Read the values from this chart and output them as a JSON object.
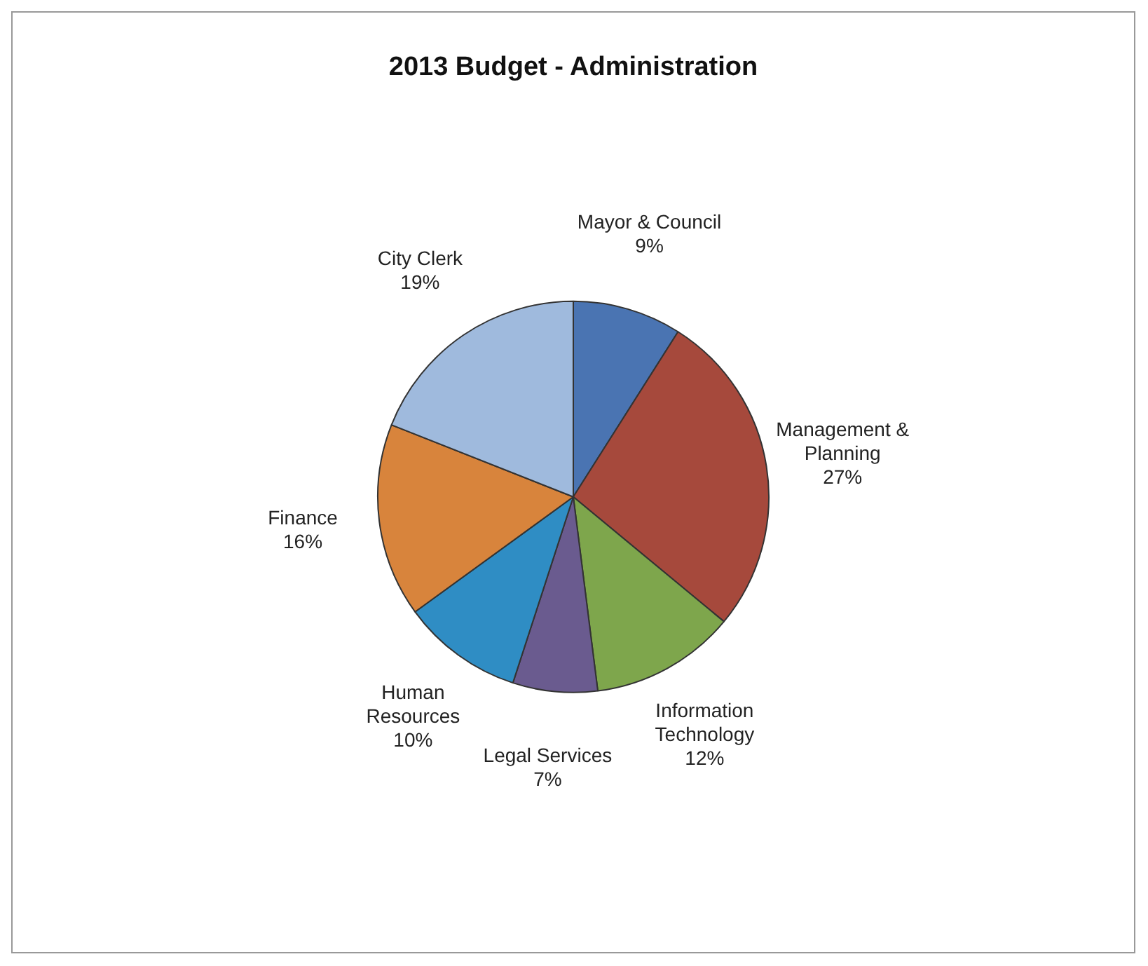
{
  "chart_data": {
    "type": "pie",
    "title": "2013 Budget - Administration",
    "categories": [
      "Mayor & Council",
      "Management & Planning",
      "Information Technology",
      "Legal Services",
      "Human Resources",
      "Finance",
      "City Clerk"
    ],
    "values": [
      9,
      27,
      12,
      7,
      10,
      16,
      19
    ],
    "value_labels": [
      "9%",
      "27%",
      "12%",
      "7%",
      "10%",
      "16%",
      "19%"
    ],
    "colors": [
      "#4a74b2",
      "#a6493c",
      "#7ea64c",
      "#6a5b8f",
      "#2f8dc4",
      "#d8843c",
      "#9fbadd"
    ],
    "legend": false
  }
}
